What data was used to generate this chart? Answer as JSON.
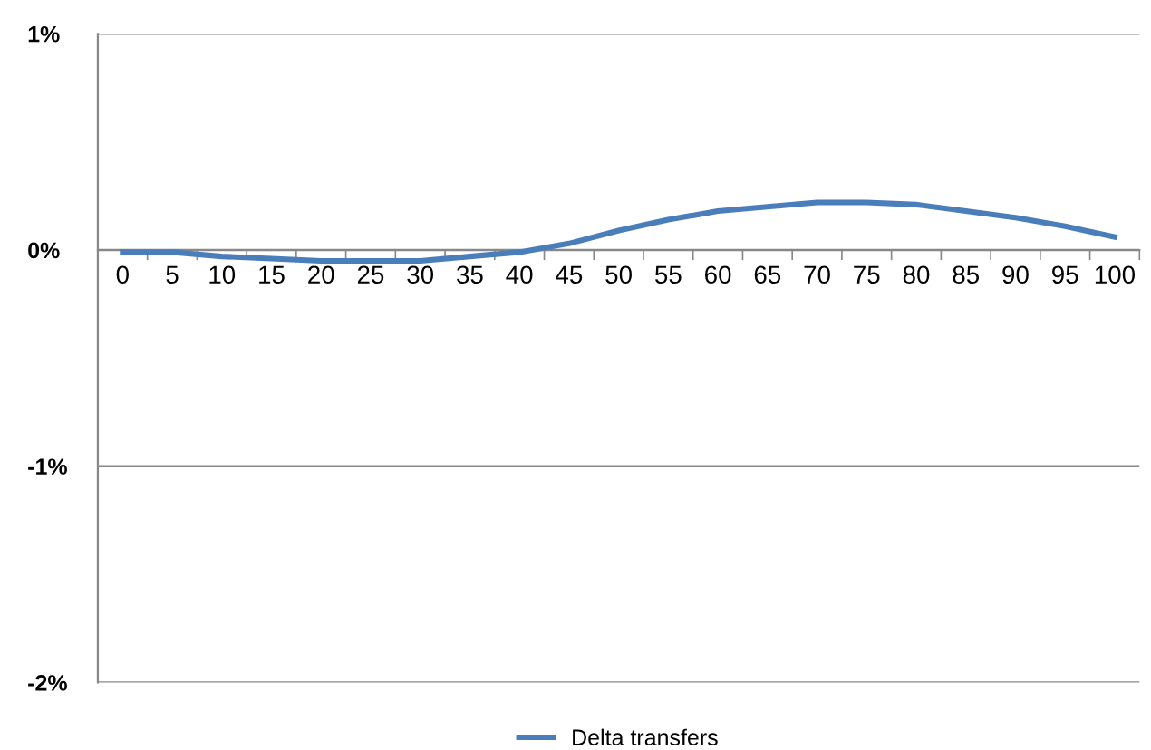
{
  "chart_data": {
    "type": "line",
    "categories": [
      "0",
      "5",
      "10",
      "15",
      "20",
      "25",
      "30",
      "35",
      "40",
      "45",
      "50",
      "55",
      "60",
      "65",
      "70",
      "75",
      "80",
      "85",
      "90",
      "95",
      "100"
    ],
    "series": [
      {
        "name": "Delta transfers",
        "color": "#4a7ebb",
        "values": [
          -0.01,
          -0.01,
          -0.03,
          -0.04,
          -0.05,
          -0.05,
          -0.05,
          -0.03,
          -0.01,
          0.03,
          0.09,
          0.14,
          0.18,
          0.2,
          0.22,
          0.22,
          0.21,
          0.18,
          0.15,
          0.11,
          0.06
        ]
      }
    ],
    "ylim": [
      -2,
      1
    ],
    "yticks": [
      {
        "value": -2,
        "label": "-2%"
      },
      {
        "value": -1,
        "label": "-1%"
      },
      {
        "value": 0,
        "label": "0%"
      },
      {
        "value": 1,
        "label": "1%"
      }
    ],
    "grid": "y",
    "legend": "bottom",
    "marker": "none",
    "line_style": "solid"
  }
}
